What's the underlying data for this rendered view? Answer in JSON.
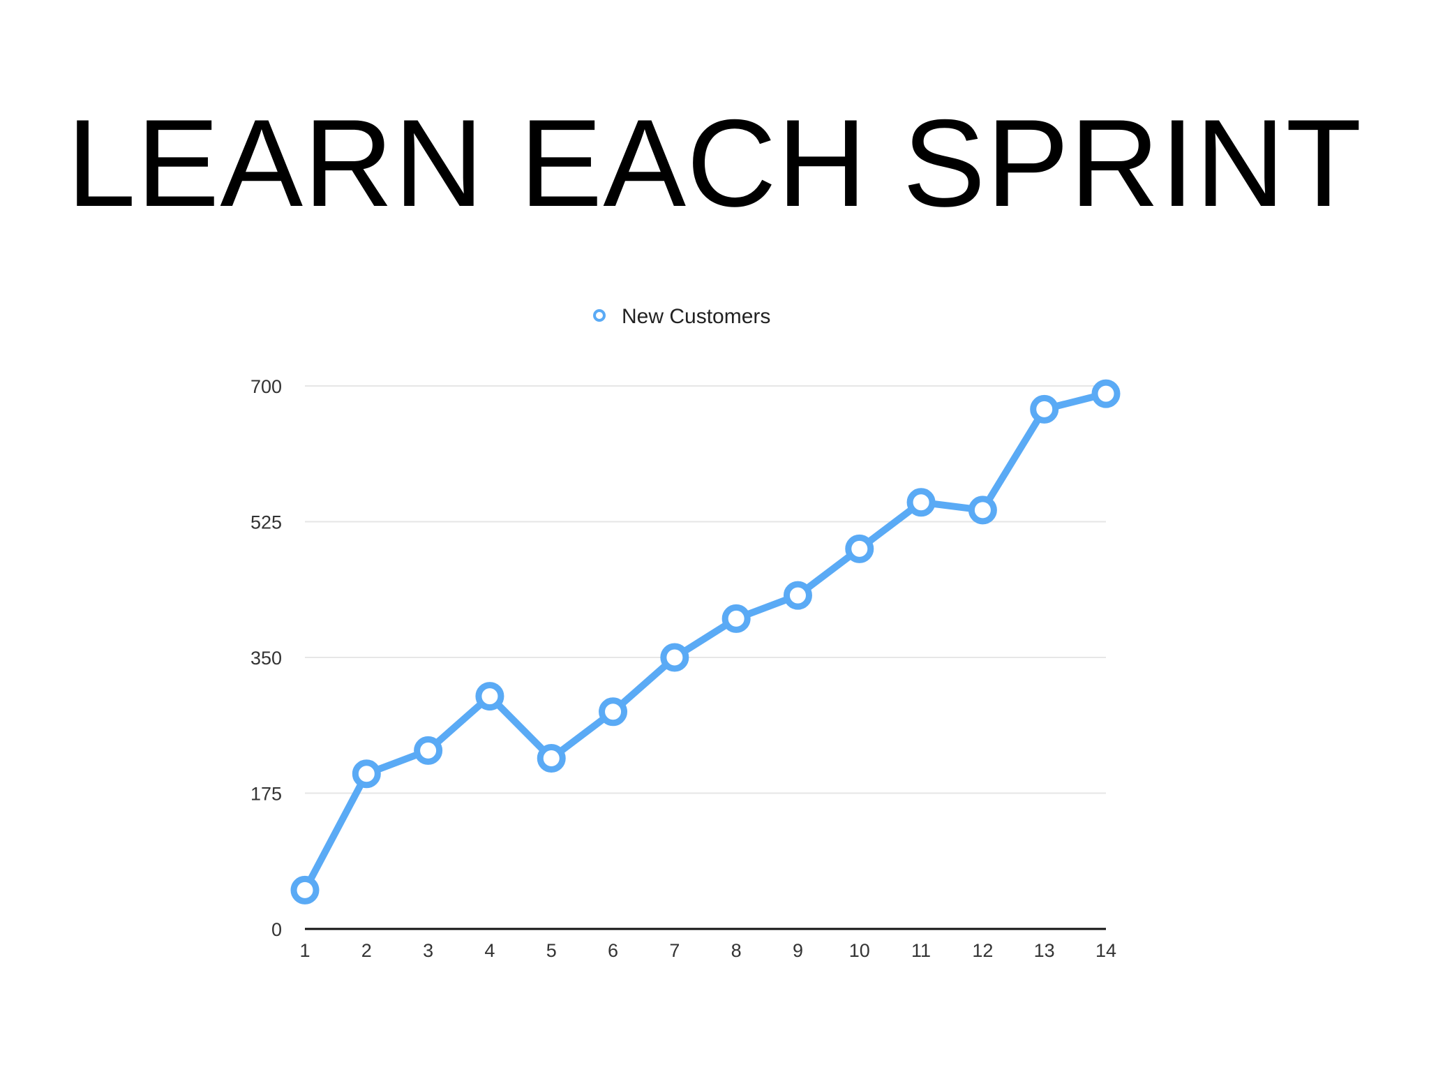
{
  "slide": {
    "title": "LEARN EACH SPRINT"
  },
  "chart_data": {
    "type": "line",
    "title": "",
    "xlabel": "",
    "ylabel": "",
    "categories": [
      "1",
      "2",
      "3",
      "4",
      "5",
      "6",
      "7",
      "8",
      "9",
      "10",
      "11",
      "12",
      "13",
      "14"
    ],
    "series": [
      {
        "name": "New Customers",
        "values": [
          50,
          200,
          230,
          300,
          220,
          280,
          350,
          400,
          430,
          490,
          550,
          540,
          670,
          690
        ]
      }
    ],
    "ylim": [
      0,
      700
    ],
    "yticks": [
      "0",
      "175",
      "350",
      "525",
      "700"
    ],
    "grid": true,
    "legend_position": "top-center",
    "colors": {
      "series": "#5aaaf5",
      "grid": "#e6e6e6",
      "axis": "#111111",
      "tick_text": "#333333"
    }
  }
}
